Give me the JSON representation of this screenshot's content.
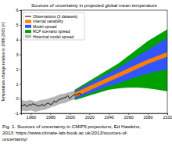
{
  "chart_data": {
    "type": "line",
    "title": "Sources of uncertainty in projected global mean temperature",
    "y_label": "Temperature change relative to 1986-2005 (K)",
    "caption": [
      "Fig. 1. Sources of uncertainty in CMIP5 projections, Ed Hawkins,",
      "2013: https://www.climate-lab-book.ac.uk/2013/sources-of-",
      "uncertainty/"
    ],
    "xlim": [
      1950,
      2100
    ],
    "xticks": [
      1960,
      1980,
      2000,
      2020,
      2040,
      2060,
      2080,
      2100
    ],
    "ylim": [
      -1,
      6
    ],
    "yticks": [
      -1,
      0,
      1,
      2,
      3,
      4,
      5,
      6
    ],
    "legend": "upper left",
    "series": [
      {
        "name": "Observations (3 datasets)",
        "type": "line",
        "color": "#000000",
        "x": [
          1950,
          1952,
          1954,
          1956,
          1958,
          1960,
          1962,
          1964,
          1966,
          1968,
          1970,
          1972,
          1974,
          1976,
          1978,
          1980,
          1982,
          1984,
          1986,
          1988,
          1990,
          1992,
          1994,
          1996,
          1998,
          2000,
          2002,
          2004,
          2006,
          2008,
          2010,
          2012
        ],
        "values": [
          -0.5,
          -0.45,
          -0.4,
          -0.55,
          -0.4,
          -0.45,
          -0.35,
          -0.4,
          -0.45,
          -0.5,
          -0.45,
          -0.4,
          -0.5,
          -0.35,
          -0.3,
          -0.4,
          -0.35,
          -0.15,
          -0.25,
          -0.1,
          -0.05,
          0,
          0.05,
          0.1,
          0.2,
          0,
          0.15,
          0.25,
          0.25,
          0.3,
          0.35,
          0.3
        ]
      },
      {
        "name": "Internal variability",
        "type": "area",
        "color": "#ff8000",
        "x": [
          2005,
          2010,
          2020,
          2030,
          2040,
          2050,
          2060,
          2070,
          2080,
          2090,
          2100
        ],
        "low": [
          0.1,
          0.25,
          0.55,
          0.85,
          1.15,
          1.45,
          1.75,
          2.05,
          2.35,
          2.6,
          2.85
        ],
        "high": [
          0.4,
          0.55,
          0.85,
          1.15,
          1.45,
          1.75,
          2.05,
          2.35,
          2.65,
          2.9,
          3.15
        ]
      },
      {
        "name": "Model spread",
        "type": "area",
        "color": "#3355ff",
        "x": [
          2005,
          2010,
          2020,
          2030,
          2040,
          2050,
          2060,
          2070,
          2080,
          2090,
          2100
        ],
        "low": [
          0,
          0.1,
          0.35,
          0.6,
          0.85,
          1.05,
          1.3,
          1.5,
          1.7,
          1.85,
          2
        ],
        "high": [
          0.5,
          0.7,
          1.05,
          1.4,
          1.75,
          2.1,
          2.5,
          2.9,
          3.3,
          3.7,
          4.1
        ]
      },
      {
        "name": "RCP scenario spread",
        "type": "area",
        "color": "#00a000",
        "x": [
          2005,
          2010,
          2020,
          2030,
          2040,
          2050,
          2060,
          2070,
          2080,
          2090,
          2100
        ],
        "low": [
          -0.1,
          0,
          0.2,
          0.4,
          0.6,
          0.7,
          0.75,
          0.75,
          0.7,
          0.6,
          0.5
        ],
        "high": [
          0.6,
          0.8,
          1.2,
          1.6,
          2,
          2.4,
          2.9,
          3.4,
          3.9,
          4.3,
          4.7
        ]
      },
      {
        "name": "Historical model spread",
        "type": "area",
        "color": "#b4b4b4",
        "x": [
          1950,
          1955,
          1960,
          1965,
          1970,
          1975,
          1980,
          1985,
          1990,
          1995,
          2000,
          2005
        ],
        "low": [
          -0.8,
          -0.85,
          -0.8,
          -0.9,
          -0.8,
          -0.75,
          -0.6,
          -0.5,
          -0.35,
          -0.3,
          -0.15,
          -0.05
        ],
        "high": [
          -0.1,
          -0.15,
          -0.1,
          -0.2,
          -0.1,
          -0.05,
          0.05,
          0.15,
          0.3,
          0.35,
          0.45,
          0.55
        ]
      }
    ]
  }
}
